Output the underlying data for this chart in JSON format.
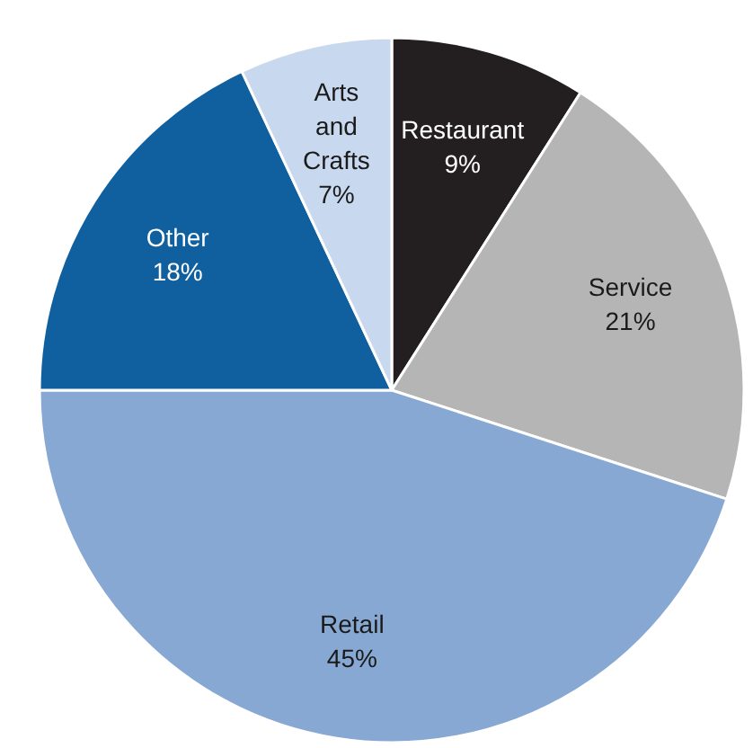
{
  "chart_data": {
    "type": "pie",
    "categories": [
      "Restaurant",
      "Service",
      "Retail",
      "Other",
      "Arts and Crafts"
    ],
    "values": [
      9,
      21,
      45,
      18,
      7
    ],
    "value_labels": [
      "9%",
      "21%",
      "45%",
      "18%",
      "7%"
    ],
    "colors": [
      "#231f20",
      "#b5b5b5",
      "#87a8d3",
      "#1060a0",
      "#c8d8ee"
    ],
    "legend": false
  }
}
